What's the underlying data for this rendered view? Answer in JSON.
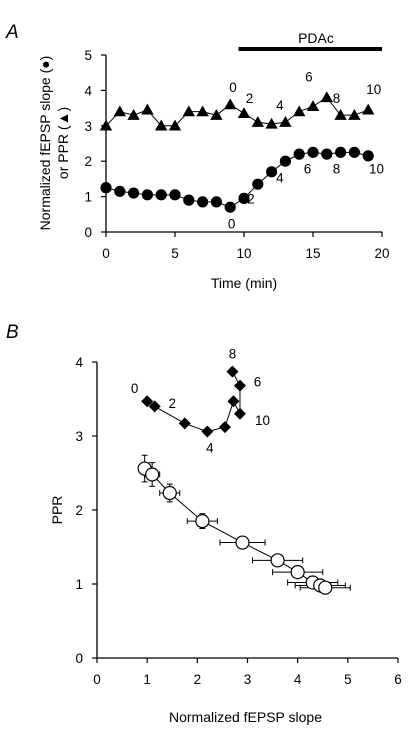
{
  "chart_data": [
    {
      "panel": "A",
      "type": "scatter",
      "xlabel": "Time (min)",
      "ylabel_line1": "Normalized fEPSP slope (●)",
      "ylabel_line2": "or PPR (▲)",
      "xlim": [
        0,
        20
      ],
      "ylim": [
        0,
        5
      ],
      "xticks": [
        "0",
        "5",
        "10",
        "15",
        "20"
      ],
      "yticks": [
        "0",
        "1",
        "2",
        "3",
        "4",
        "5"
      ],
      "bar": {
        "label": "PDAc",
        "from": 9.6,
        "to": 20
      },
      "series": [
        {
          "marker": "triangle",
          "x": [
            0,
            1,
            2,
            3,
            4,
            5,
            6,
            7,
            8,
            9,
            10,
            11,
            12,
            13,
            14,
            15,
            16,
            17,
            18,
            19
          ],
          "y": [
            3.0,
            3.4,
            3.3,
            3.45,
            3.0,
            3.0,
            3.4,
            3.4,
            3.3,
            3.6,
            3.35,
            3.1,
            3.05,
            3.1,
            3.4,
            3.55,
            3.8,
            3.3,
            3.3,
            3.45
          ]
        },
        {
          "marker": "circle",
          "x": [
            0,
            1,
            2,
            3,
            4,
            5,
            6,
            7,
            8,
            9,
            10,
            11,
            12,
            13,
            14,
            15,
            16,
            17,
            18,
            19
          ],
          "y": [
            1.25,
            1.15,
            1.1,
            1.05,
            1.05,
            1.05,
            0.9,
            0.85,
            0.85,
            0.7,
            0.95,
            1.35,
            1.7,
            2.0,
            2.2,
            2.25,
            2.2,
            2.25,
            2.25,
            2.15
          ]
        }
      ],
      "annotations": [
        {
          "text": "0",
          "x": 9.2,
          "y": 3.95
        },
        {
          "text": "2",
          "x": 10.4,
          "y": 3.65
        },
        {
          "text": "4",
          "x": 12.6,
          "y": 3.45
        },
        {
          "text": "6",
          "x": 14.7,
          "y": 4.25
        },
        {
          "text": "8",
          "x": 16.7,
          "y": 3.65
        },
        {
          "text": "10",
          "x": 19.4,
          "y": 3.9
        },
        {
          "text": "0",
          "x": 9.1,
          "y": 0.1
        },
        {
          "text": "2",
          "x": 10.5,
          "y": 0.8
        },
        {
          "text": "4",
          "x": 12.6,
          "y": 1.4
        },
        {
          "text": "6",
          "x": 14.6,
          "y": 1.65
        },
        {
          "text": "8",
          "x": 16.7,
          "y": 1.65
        },
        {
          "text": "10",
          "x": 19.6,
          "y": 1.65
        }
      ]
    },
    {
      "panel": "B",
      "type": "scatter",
      "xlabel": "Normalized fEPSP slope",
      "ylabel": "PPR",
      "xlim": [
        0,
        6
      ],
      "ylim": [
        0,
        4
      ],
      "xticks": [
        "0",
        "1",
        "2",
        "3",
        "4",
        "5",
        "6"
      ],
      "yticks": [
        "0",
        "1",
        "2",
        "3",
        "4"
      ],
      "series": [
        {
          "marker": "diamond",
          "points": [
            [
              1.0,
              3.47
            ],
            [
              1.15,
              3.4
            ],
            [
              1.75,
              3.17
            ],
            [
              2.2,
              3.06
            ],
            [
              2.55,
              3.12
            ],
            [
              2.72,
              3.47
            ],
            [
              2.85,
              3.3
            ],
            [
              2.85,
              3.68
            ],
            [
              2.7,
              3.87
            ]
          ]
        },
        {
          "marker": "open-circle",
          "points": [
            [
              0.95,
              2.56
            ],
            [
              1.1,
              2.48
            ],
            [
              1.45,
              2.23
            ],
            [
              2.1,
              1.85
            ],
            [
              2.9,
              1.56
            ],
            [
              3.6,
              1.32
            ],
            [
              4.0,
              1.16
            ],
            [
              4.3,
              1.02
            ],
            [
              4.45,
              0.98
            ],
            [
              4.55,
              0.95
            ]
          ],
          "yerr": [
            0.18,
            0.16,
            0.12,
            0.1,
            0.08,
            0.07,
            0.06,
            0.05,
            0.04,
            0.04
          ],
          "xerr": [
            0.12,
            0.15,
            0.2,
            0.3,
            0.45,
            0.5,
            0.5,
            0.5,
            0.5,
            0.5
          ]
        }
      ],
      "annotations": [
        {
          "text": "0",
          "x": 0.75,
          "y": 3.58
        },
        {
          "text": "2",
          "x": 1.5,
          "y": 3.38
        },
        {
          "text": "4",
          "x": 2.25,
          "y": 2.78
        },
        {
          "text": "6",
          "x": 3.2,
          "y": 3.67
        },
        {
          "text": "8",
          "x": 2.7,
          "y": 4.05
        },
        {
          "text": "10",
          "x": 3.3,
          "y": 3.15
        }
      ]
    }
  ]
}
